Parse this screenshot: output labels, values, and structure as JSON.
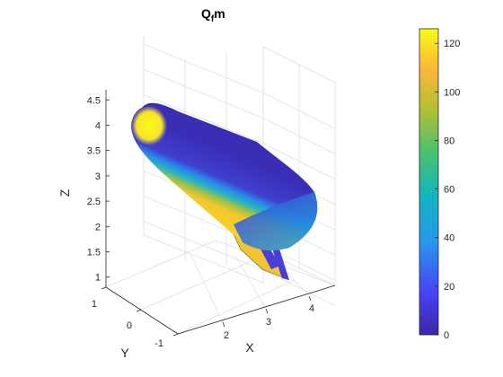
{
  "chart_data": {
    "type": "surface3d",
    "title_main": "Q",
    "title_sub": "f",
    "title_tail": "m",
    "xlabel": "X",
    "ylabel": "Y",
    "zlabel": "Z",
    "x_ticks": [
      "2",
      "3",
      "4"
    ],
    "y_ticks": [
      "1",
      "0",
      "-1"
    ],
    "z_ticks": [
      "4.5",
      "4",
      "3.5",
      "3",
      "2.5",
      "2",
      "1.5",
      "1"
    ],
    "z_values": [
      4.5,
      4,
      3.5,
      3,
      2.5,
      2,
      1.5,
      1
    ],
    "zlim": [
      0.8,
      4.7
    ],
    "colorbar": {
      "ticks": [
        "120",
        "100",
        "80",
        "60",
        "40",
        "20",
        "0"
      ],
      "values": [
        120,
        100,
        80,
        60,
        40,
        20,
        0
      ],
      "clim": [
        0,
        126
      ],
      "colormap": "parula",
      "colors": [
        "#3e26a8",
        "#4743f8",
        "#2797eb",
        "#12b4c3",
        "#4cc26c",
        "#b6bf31",
        "#fbb83a",
        "#f9fb15"
      ]
    },
    "grid": true
  }
}
